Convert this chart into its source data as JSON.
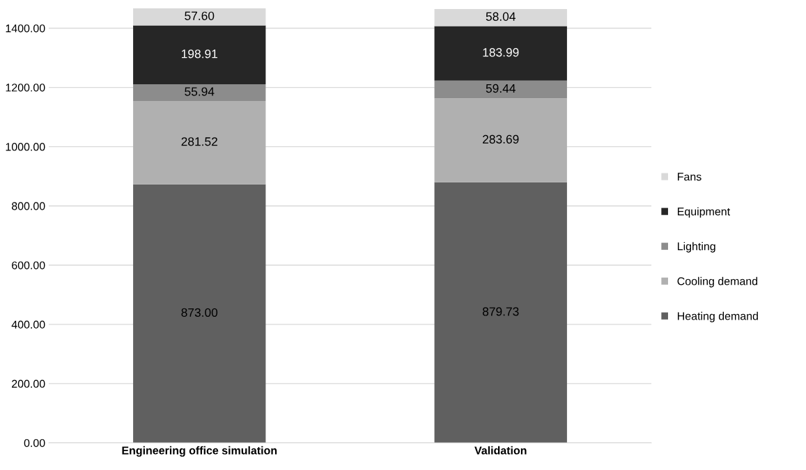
{
  "chart_data": {
    "type": "bar",
    "stacked": true,
    "categories": [
      "Engineering office simulation",
      "Validation"
    ],
    "series": [
      {
        "name": "Heating demand",
        "color": "#606060",
        "values": [
          873.0,
          879.73
        ],
        "value_labels": [
          "873.00",
          "879.73"
        ]
      },
      {
        "name": "Cooling demand",
        "color": "#b0b0b0",
        "values": [
          281.52,
          283.69
        ],
        "value_labels": [
          "281.52",
          "283.69"
        ]
      },
      {
        "name": "Lighting",
        "color": "#8c8c8c",
        "values": [
          55.94,
          59.44
        ],
        "value_labels": [
          "55.94",
          "59.44"
        ]
      },
      {
        "name": "Equipment",
        "color": "#262626",
        "values": [
          198.91,
          183.99
        ],
        "value_labels": [
          "198.91",
          "183.99"
        ]
      },
      {
        "name": "Fans",
        "color": "#d9d9d9",
        "values": [
          57.6,
          58.04
        ],
        "value_labels": [
          "57.60",
          "58.04"
        ]
      }
    ],
    "ylim": [
      0,
      1467
    ],
    "yticks": [
      {
        "value": 0,
        "label": "0.00"
      },
      {
        "value": 200,
        "label": "200.00"
      },
      {
        "value": 400,
        "label": "400.00"
      },
      {
        "value": 600,
        "label": "600.00"
      },
      {
        "value": 800,
        "label": "800.00"
      },
      {
        "value": 1000,
        "label": "1000.00"
      },
      {
        "value": 1200,
        "label": "1200.00"
      },
      {
        "value": 1400,
        "label": "1400.00"
      }
    ],
    "grid": "y",
    "legend": "right"
  }
}
